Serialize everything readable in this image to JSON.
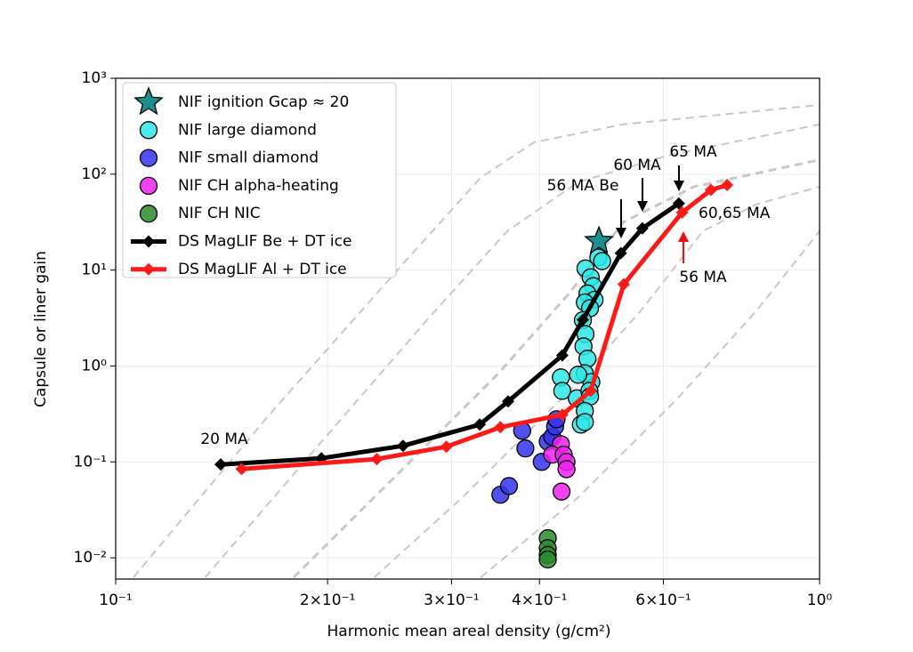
{
  "chart_data": {
    "type": "scatter",
    "xlabel": "Harmonic mean areal density (g/cm²)",
    "ylabel": "Capsule or liner gain",
    "xscale": "log",
    "yscale": "log",
    "xlim": [
      0.1,
      1.0
    ],
    "ylim": [
      0.006,
      1000
    ],
    "xticks": [
      {
        "value": 0.1,
        "label": "10⁻¹"
      },
      {
        "value": 0.2,
        "label": "2×10⁻¹"
      },
      {
        "value": 0.3,
        "label": "3×10⁻¹"
      },
      {
        "value": 0.4,
        "label": "4×10⁻¹"
      },
      {
        "value": 0.6,
        "label": "6×10⁻¹"
      },
      {
        "value": 1.0,
        "label": "10⁰"
      }
    ],
    "yticks": [
      {
        "value": 0.01,
        "label": "10⁻²"
      },
      {
        "value": 0.1,
        "label": "10⁻¹"
      },
      {
        "value": 1,
        "label": "10⁰"
      },
      {
        "value": 10,
        "label": "10¹"
      },
      {
        "value": 100,
        "label": "10²"
      },
      {
        "value": 1000,
        "label": "10³"
      }
    ],
    "grid": true,
    "legend": "upper left",
    "reference_color": "#c8c8c8",
    "reference_curves": [
      {
        "x": [
          0.106,
          0.164,
          0.254,
          0.33,
          0.393,
          0.526,
          1.0
        ],
        "values": [
          0.00625,
          0.29,
          10.9,
          91.8,
          215,
          331,
          527
        ]
      },
      {
        "x": [
          0.134,
          0.19,
          0.277,
          0.36,
          0.454,
          0.608,
          1.0
        ],
        "values": [
          0.00625,
          0.124,
          3.03,
          25.5,
          82.6,
          156,
          331
        ]
      },
      {
        "x": [
          0.179,
          0.247,
          0.35,
          0.441,
          0.526,
          0.663,
          1.0
        ],
        "values": [
          0.00625,
          0.0653,
          0.84,
          5.74,
          31.6,
          74.1,
          141
        ]
      },
      {
        "x": [
          0.233,
          0.311,
          0.441,
          0.557,
          0.683,
          0.813,
          1.0
        ],
        "values": [
          0.00625,
          0.0427,
          0.55,
          3.75,
          25.5,
          48.4,
          74.1
        ]
      },
      {
        "x": [
          0.33,
          0.454,
          0.626,
          0.813,
          1.0
        ],
        "values": [
          0.00625,
          0.0427,
          0.445,
          3.75,
          25.5
        ]
      }
    ],
    "series": [
      {
        "name": "NIF ignition Gcap ≈ 20",
        "color": "#1b8f8f",
        "marker": "star",
        "x": [
          0.486
        ],
        "values": [
          20
        ]
      },
      {
        "name": "NIF large diamond",
        "color": "#2ee6e6",
        "marker": "circle",
        "x": [
          0.465,
          0.473,
          0.477,
          0.468,
          0.479,
          0.464,
          0.472,
          0.485,
          0.491,
          0.461,
          0.465,
          0.462,
          0.468,
          0.464,
          0.474,
          0.454,
          0.429,
          0.431,
          0.452,
          0.471,
          0.472,
          0.464,
          0.458,
          0.464
        ],
        "values": [
          10.4,
          8.4,
          6.8,
          5.7,
          4.9,
          4.6,
          4.0,
          13.5,
          12.4,
          3.0,
          2.15,
          1.6,
          1.19,
          0.84,
          0.68,
          0.81,
          0.76,
          0.55,
          0.46,
          0.55,
          0.48,
          0.34,
          0.245,
          0.26
        ]
      },
      {
        "name": "NIF small diamond",
        "color": "#3333ee",
        "marker": "circle",
        "x": [
          0.352,
          0.362,
          0.378,
          0.382,
          0.403,
          0.411,
          0.417,
          0.421,
          0.423
        ],
        "values": [
          0.0454,
          0.056,
          0.211,
          0.138,
          0.1,
          0.163,
          0.182,
          0.234,
          0.278
        ]
      },
      {
        "name": "NIF CH alpha-heating",
        "color": "#ee22ee",
        "marker": "circle",
        "x": [
          0.429,
          0.417,
          0.433,
          0.437,
          0.437,
          0.43
        ],
        "values": [
          0.153,
          0.119,
          0.119,
          0.1,
          0.084,
          0.049
        ]
      },
      {
        "name": "NIF CH NIC",
        "color": "#2a8a2a",
        "marker": "circle",
        "x": [
          0.411,
          0.411,
          0.411,
          0.411
        ],
        "values": [
          0.016,
          0.0126,
          0.0107,
          0.0096
        ]
      },
      {
        "name": "DS MagLIF Be + DT ice",
        "color": "#000000",
        "marker": "diamond",
        "line": true,
        "x": [
          0.141,
          0.196,
          0.256,
          0.329,
          0.361,
          0.431,
          0.461,
          0.522,
          0.56,
          0.631
        ],
        "values": [
          0.094,
          0.109,
          0.147,
          0.245,
          0.427,
          1.29,
          3.03,
          15.0,
          27.2,
          49.5
        ]
      },
      {
        "name": "DS MagLIF Al  + DT ice",
        "color": "#ff1a1a",
        "marker": "diamond",
        "line": true,
        "x": [
          0.151,
          0.235,
          0.295,
          0.352,
          0.431,
          0.473,
          0.527,
          0.638,
          0.701,
          0.739
        ],
        "values": [
          0.0843,
          0.107,
          0.144,
          0.23,
          0.31,
          0.55,
          7.1,
          39.9,
          68.5,
          77
        ]
      }
    ],
    "annotations": [
      {
        "text": "20 MA",
        "color": "#000000"
      },
      {
        "text": "56 MA Be",
        "color": "#000000"
      },
      {
        "text": "60 MA",
        "color": "#000000"
      },
      {
        "text": "65 MA",
        "color": "#000000"
      },
      {
        "text": "60,65 MA",
        "color": "#ee1111"
      },
      {
        "text": "56 MA",
        "color": "#ee1111"
      }
    ]
  }
}
